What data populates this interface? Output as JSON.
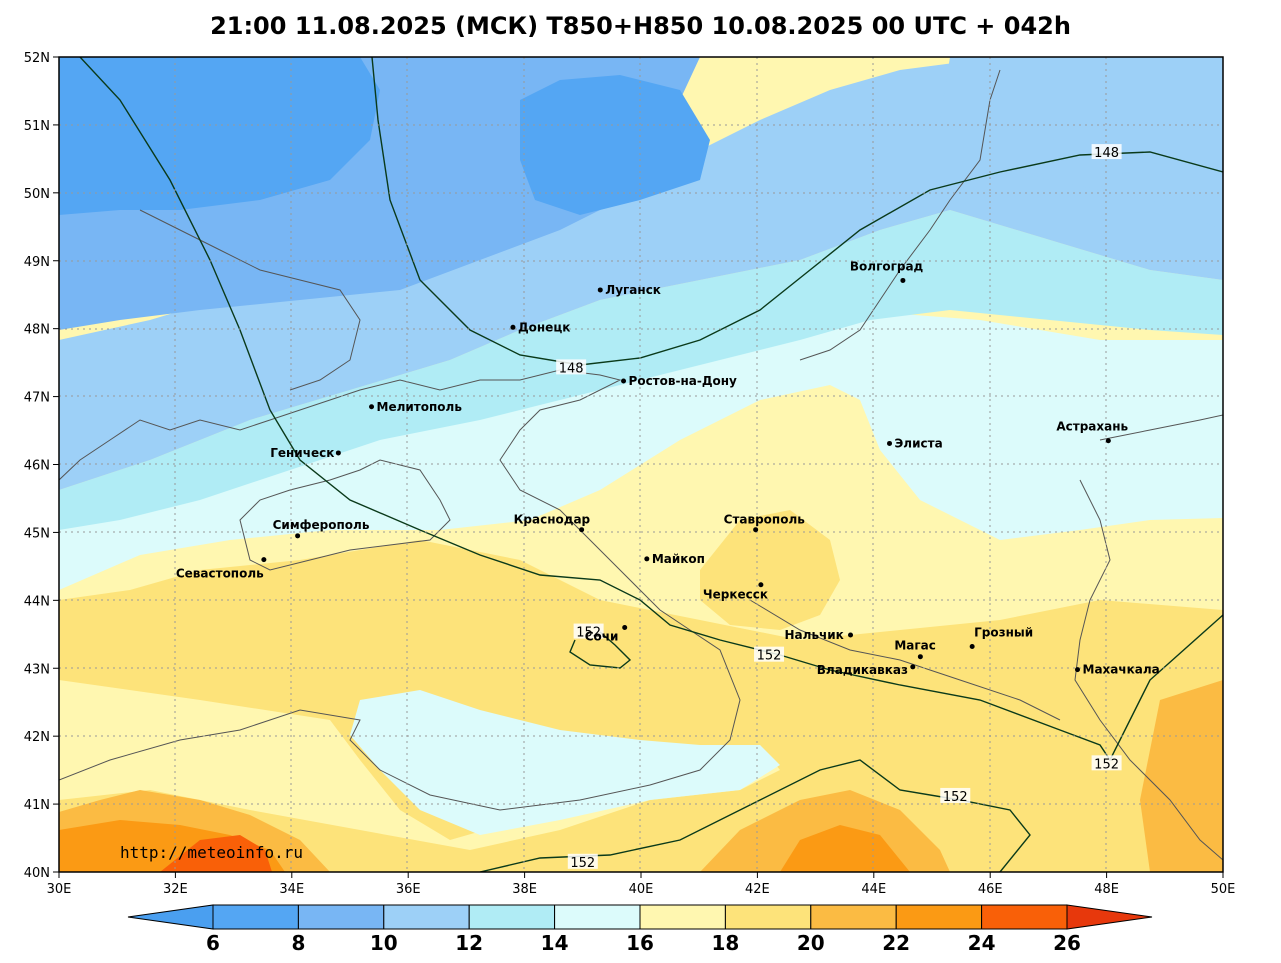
{
  "title": "21:00 11.08.2025 (МСК) T850+H850 10.08.2025 00 UTC + 042h",
  "credit": "http://meteoinfo.ru",
  "lat_labels": [
    "52N",
    "51N",
    "50N",
    "49N",
    "48N",
    "47N",
    "46N",
    "45N",
    "44N",
    "43N",
    "42N",
    "41N",
    "40N"
  ],
  "lon_labels": [
    "30E",
    "32E",
    "34E",
    "36E",
    "38E",
    "40E",
    "42E",
    "44E",
    "46E",
    "48E",
    "50E"
  ],
  "colorbar": {
    "ticks": [
      "6",
      "8",
      "10",
      "12",
      "14",
      "16",
      "18",
      "20",
      "22",
      "24",
      "26"
    ],
    "colors": [
      "#4a9ff0",
      "#54a6f3",
      "#78b6f4",
      "#9dd0f7",
      "#b0ecf5",
      "#dcfbfb",
      "#fff7b0",
      "#fde37a",
      "#fbbb43",
      "#fb9a14",
      "#f96008",
      "#e7380c"
    ]
  },
  "cities": [
    {
      "name": "Луганск",
      "lon": 39.3,
      "lat": 48.57
    },
    {
      "name": "Донецк",
      "lon": 37.8,
      "lat": 48.02
    },
    {
      "name": "Волгоград",
      "lon": 44.5,
      "lat": 48.71
    },
    {
      "name": "Ростов-на-Дону",
      "lon": 39.7,
      "lat": 47.23
    },
    {
      "name": "Мелитополь",
      "lon": 35.37,
      "lat": 46.85
    },
    {
      "name": "Геническ",
      "lon": 34.8,
      "lat": 46.17
    },
    {
      "name": "Элиста",
      "lon": 44.27,
      "lat": 46.31
    },
    {
      "name": "Астрахань",
      "lon": 48.03,
      "lat": 46.35
    },
    {
      "name": "Симферополь",
      "lon": 34.1,
      "lat": 44.95
    },
    {
      "name": "Краснодар",
      "lon": 38.98,
      "lat": 45.04
    },
    {
      "name": "Ставрополь",
      "lon": 41.97,
      "lat": 45.04
    },
    {
      "name": "Майкоп",
      "lon": 40.1,
      "lat": 44.61
    },
    {
      "name": "Севастополь",
      "lon": 33.52,
      "lat": 44.6
    },
    {
      "name": "Черкесск",
      "lon": 42.06,
      "lat": 44.23
    },
    {
      "name": "Нальчик",
      "lon": 43.6,
      "lat": 43.49
    },
    {
      "name": "Грозный",
      "lon": 45.69,
      "lat": 43.32
    },
    {
      "name": "Магас",
      "lon": 44.8,
      "lat": 43.17
    },
    {
      "name": "Сочи",
      "lon": 39.72,
      "lat": 43.6
    },
    {
      "name": "Владикавказ",
      "lon": 44.67,
      "lat": 43.02
    },
    {
      "name": "Махачкала",
      "lon": 47.5,
      "lat": 42.98
    }
  ],
  "isohypses": [
    {
      "value": "148",
      "lon": 38.8,
      "lat": 47.43
    },
    {
      "value": "148",
      "lon": 48.0,
      "lat": 50.6
    },
    {
      "value": "152",
      "lon": 39.1,
      "lat": 43.54
    },
    {
      "value": "152",
      "lon": 42.2,
      "lat": 43.2
    },
    {
      "value": "152",
      "lon": 48.0,
      "lat": 41.6
    },
    {
      "value": "152",
      "lon": 45.4,
      "lat": 41.12
    },
    {
      "value": "152",
      "lon": 39.0,
      "lat": 40.15
    }
  ]
}
